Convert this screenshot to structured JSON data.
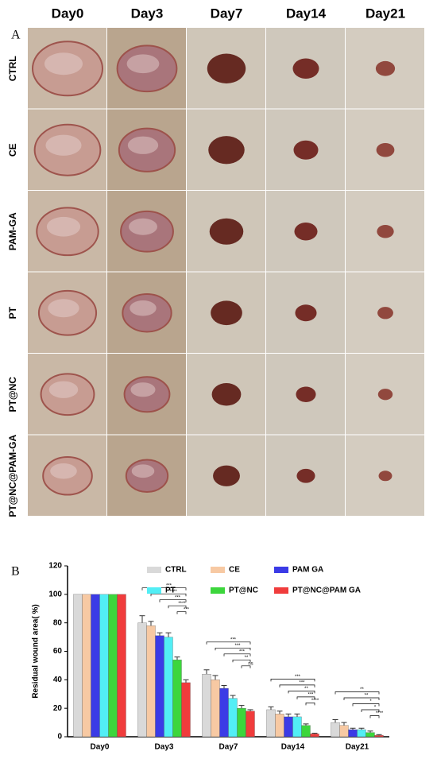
{
  "panel_a": {
    "label": "A",
    "columns": [
      "Day0",
      "Day3",
      "Day7",
      "Day14",
      "Day21"
    ],
    "rows": [
      "CTRL",
      "CE",
      "PAM-GA",
      "PT",
      "PT@NC",
      "PT@NC@PAM-GA"
    ]
  },
  "panel_b_label": "B",
  "chart_data": {
    "type": "bar",
    "ylabel": "Residual wound area( %)",
    "categories": [
      "Day0",
      "Day3",
      "Day7",
      "Day14",
      "Day21"
    ],
    "series": [
      {
        "name": "CTRL",
        "color": "#d9d9d9",
        "values": [
          100,
          80,
          44,
          19,
          10
        ],
        "errors": [
          0,
          5,
          3,
          2,
          2
        ]
      },
      {
        "name": "CE",
        "color": "#f7c9a3",
        "values": [
          100,
          78,
          40,
          16,
          8
        ],
        "errors": [
          0,
          3,
          3,
          2,
          2
        ]
      },
      {
        "name": "PAM GA",
        "color": "#3b3be6",
        "values": [
          100,
          71,
          34,
          14,
          5
        ],
        "errors": [
          0,
          2,
          2,
          2,
          1
        ]
      },
      {
        "name": "PT",
        "color": "#52eef5",
        "values": [
          100,
          70,
          27,
          14,
          5
        ],
        "errors": [
          0,
          3,
          2,
          2,
          1
        ]
      },
      {
        "name": "PT@NC",
        "color": "#3cd63c",
        "values": [
          100,
          54,
          20,
          8,
          3
        ],
        "errors": [
          0,
          2,
          2,
          1,
          1
        ]
      },
      {
        "name": "PT@NC@PAM GA",
        "color": "#f03c3c",
        "values": [
          100,
          38,
          18,
          2,
          1
        ],
        "errors": [
          0,
          2,
          1,
          0.5,
          0.5
        ]
      }
    ],
    "ylim": [
      0,
      120
    ],
    "yticks": [
      0,
      20,
      40,
      60,
      80,
      100,
      120
    ],
    "significance": [
      [],
      [
        "***",
        "****",
        "***",
        "****",
        "***"
      ],
      [
        "***",
        "***",
        "***",
        "**",
        "ns"
      ],
      [
        "***",
        "***",
        "**",
        "***",
        "****"
      ],
      [
        "**",
        "**",
        "*",
        "*",
        "****"
      ]
    ]
  }
}
